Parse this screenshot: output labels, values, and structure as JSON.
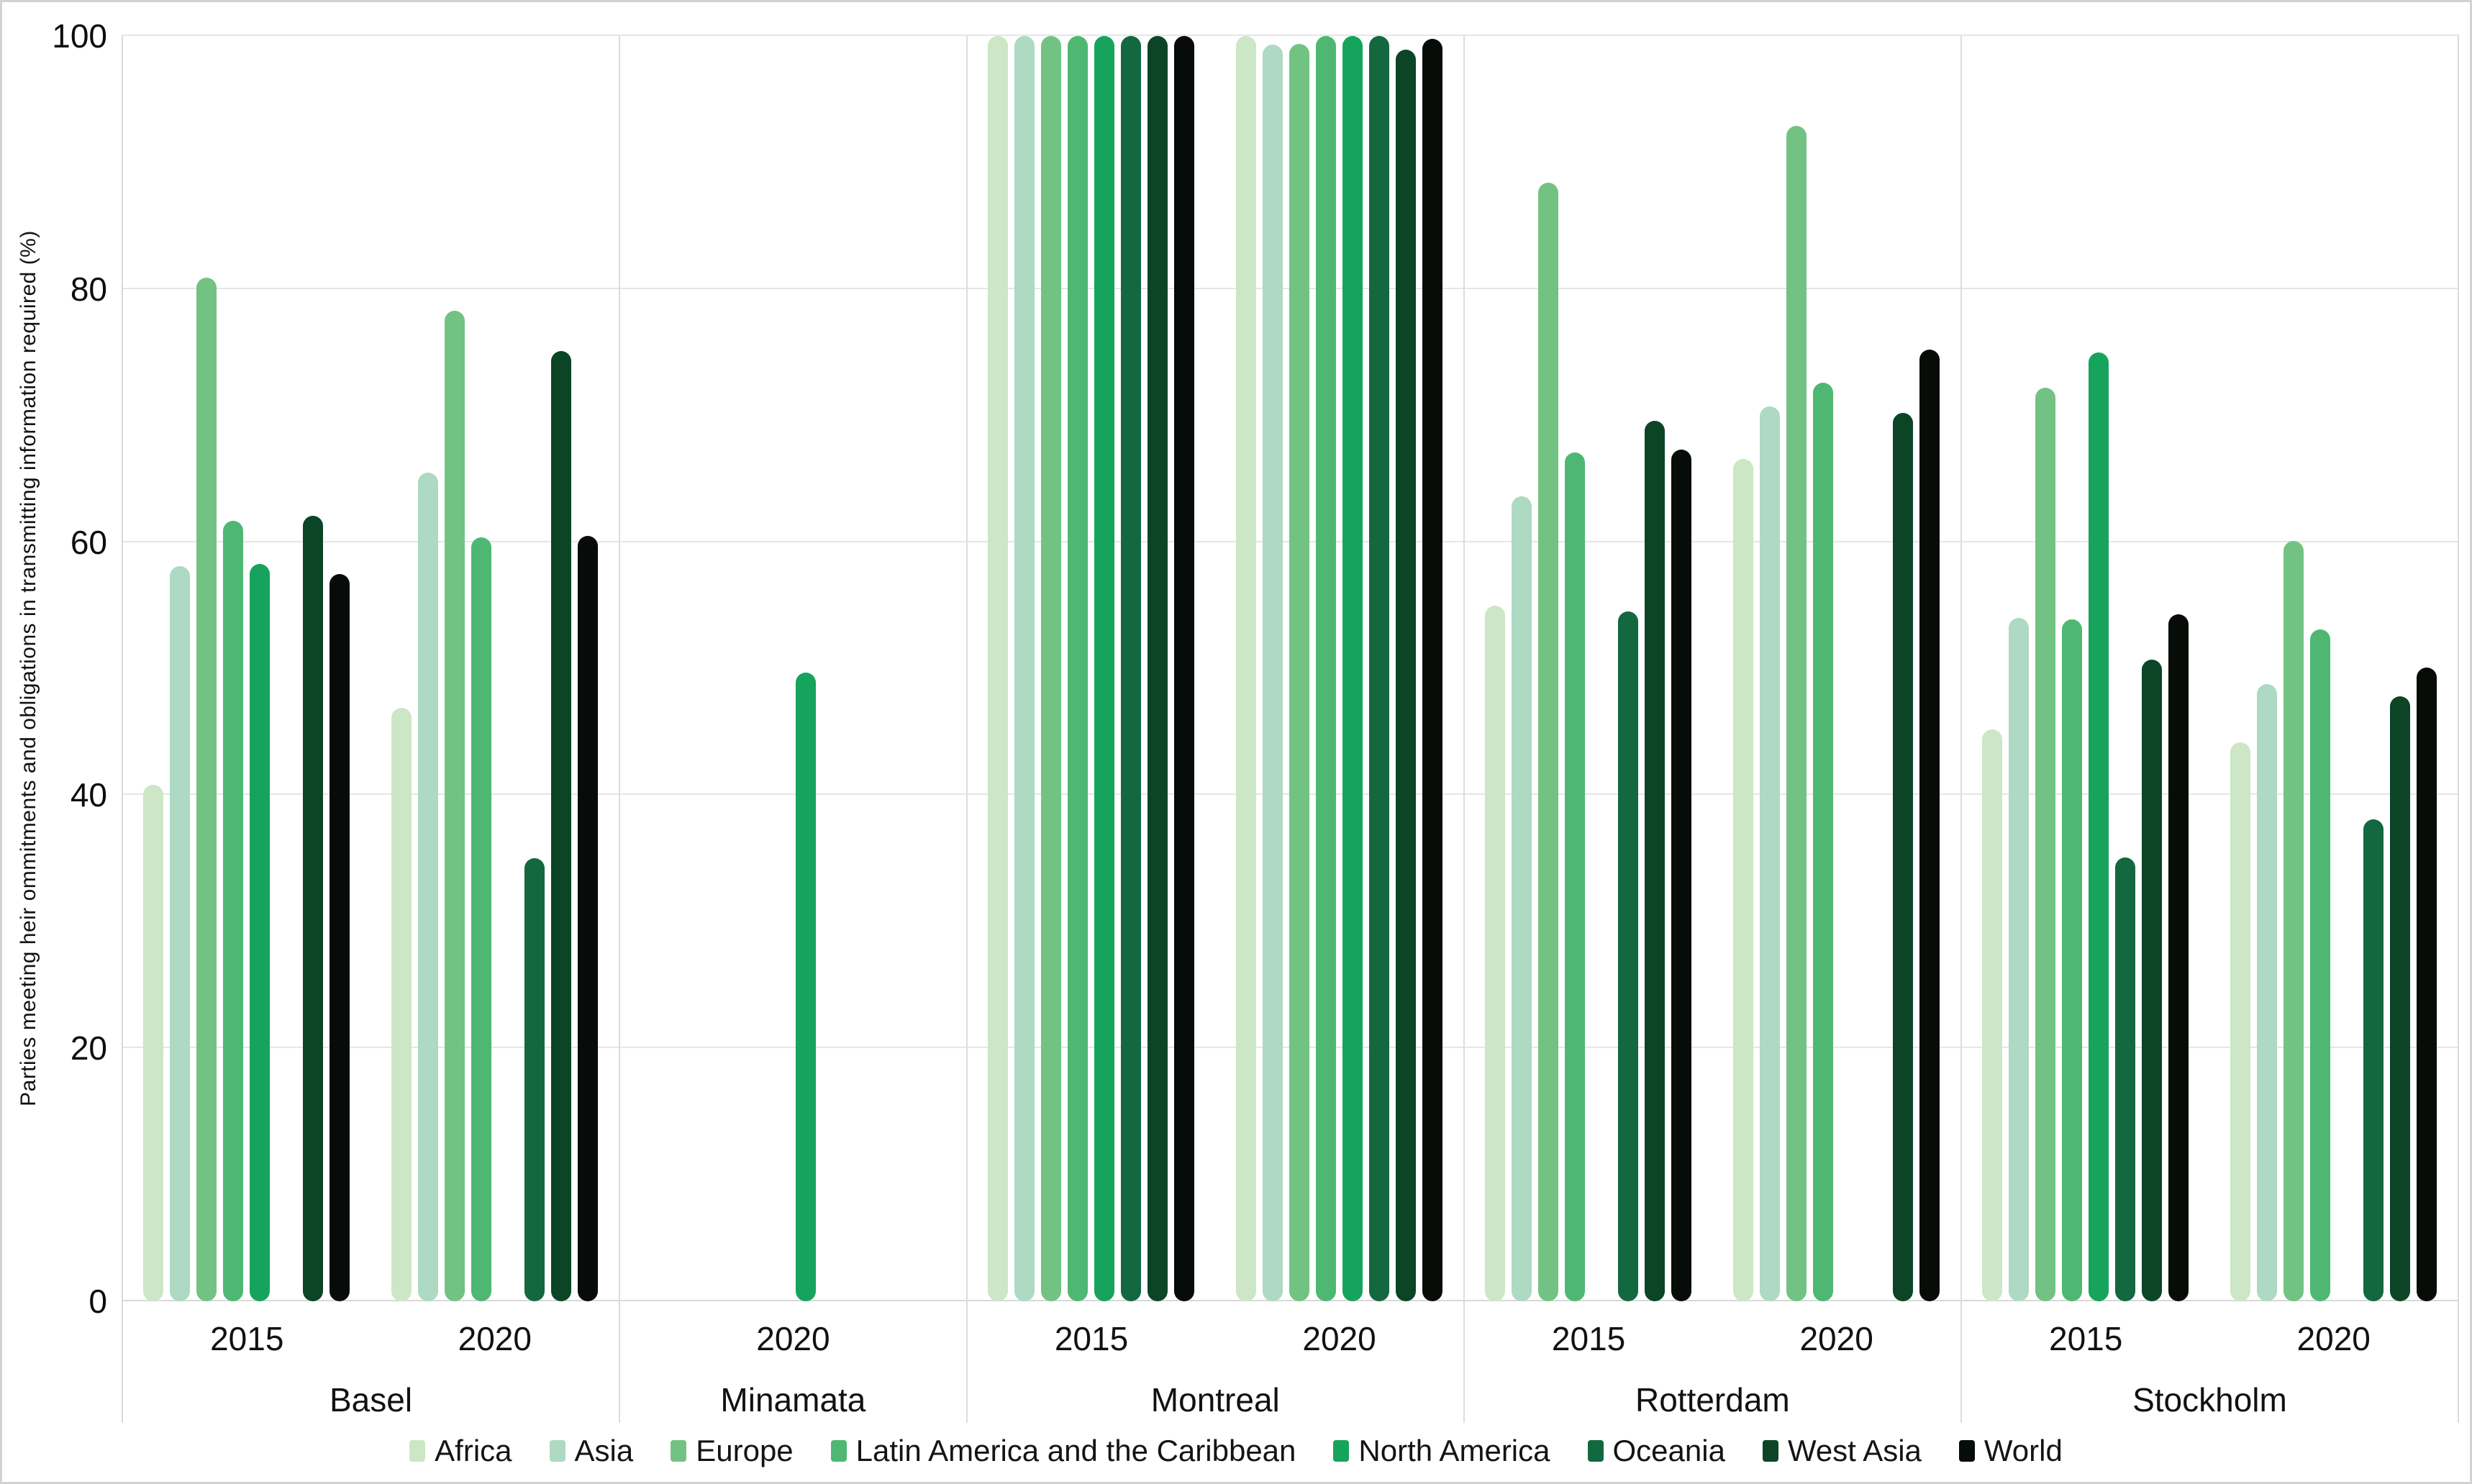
{
  "chart_data": {
    "type": "bar",
    "title": "",
    "ylabel": "Parties meeting heir ommitments and obligations in transmitting information required (%)",
    "xlabel": "",
    "ylim": [
      0,
      100
    ],
    "yticks": [
      0,
      20,
      40,
      60,
      80,
      100
    ],
    "grid": true,
    "legend_position": "bottom",
    "bar_shape": "rounded",
    "series_names": [
      "Africa",
      "Asia",
      "Europe",
      "Latin America and the Caribbean",
      "North America",
      "Oceania",
      "West Asia",
      "World"
    ],
    "series_colors": [
      "#cde6c5",
      "#aed9c2",
      "#72c383",
      "#4eb873",
      "#16a45c",
      "#136840",
      "#0b4526",
      "#070c08"
    ],
    "sections": [
      {
        "label": "Basel",
        "groups": [
          {
            "year": "2015",
            "values": [
              40.8,
              58.1,
              80.9,
              61.7,
              58.3,
              null,
              62.1,
              57.5
            ]
          },
          {
            "year": "2020",
            "values": [
              46.9,
              65.5,
              78.3,
              60.4,
              null,
              35.0,
              75.1,
              60.5
            ]
          }
        ]
      },
      {
        "label": "Minamata",
        "groups": [
          {
            "year": "2020",
            "values": [
              null,
              null,
              null,
              null,
              49.7,
              null,
              null,
              null
            ]
          }
        ]
      },
      {
        "label": "Montreal",
        "groups": [
          {
            "year": "2015",
            "values": [
              100,
              100,
              100,
              100,
              100,
              100,
              100,
              100
            ]
          },
          {
            "year": "2020",
            "values": [
              100,
              99.3,
              99.4,
              100,
              100,
              100,
              98.9,
              99.8
            ]
          }
        ]
      },
      {
        "label": "Rotterdam",
        "groups": [
          {
            "year": "2015",
            "values": [
              55.0,
              63.6,
              88.4,
              67.1,
              null,
              54.5,
              69.6,
              67.3
            ]
          },
          {
            "year": "2020",
            "values": [
              66.6,
              70.7,
              92.9,
              72.6,
              null,
              null,
              70.2,
              75.2
            ]
          }
        ]
      },
      {
        "label": "Stockholm",
        "groups": [
          {
            "year": "2015",
            "values": [
              45.2,
              54.0,
              72.2,
              53.9,
              75.0,
              35.1,
              50.7,
              54.3
            ]
          },
          {
            "year": "2020",
            "values": [
              44.2,
              48.8,
              60.1,
              53.1,
              null,
              38.1,
              47.8,
              50.1
            ]
          }
        ]
      }
    ]
  }
}
